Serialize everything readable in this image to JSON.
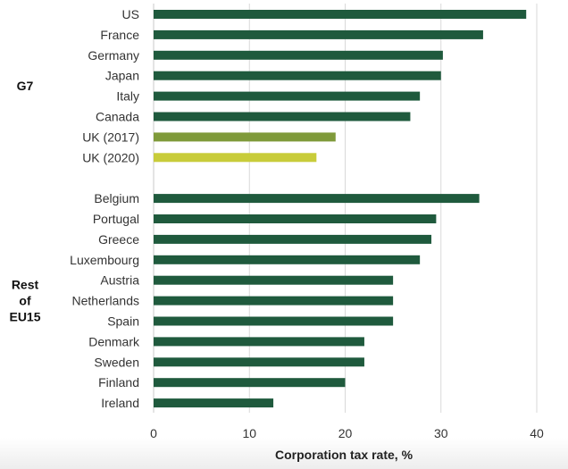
{
  "chart_data": {
    "type": "bar",
    "orientation": "horizontal",
    "xlabel": "Corporation tax rate, %",
    "xlim": [
      0,
      40
    ],
    "xticks": [
      0,
      10,
      20,
      30,
      40
    ],
    "grid": true,
    "groups": [
      {
        "label_lines": [
          "G7"
        ],
        "bars": [
          {
            "category": "US",
            "value": 38.9,
            "color": "#1f5a3d"
          },
          {
            "category": "France",
            "value": 34.4,
            "color": "#1f5a3d"
          },
          {
            "category": "Germany",
            "value": 30.2,
            "color": "#1f5a3d"
          },
          {
            "category": "Japan",
            "value": 30.0,
            "color": "#1f5a3d"
          },
          {
            "category": "Italy",
            "value": 27.8,
            "color": "#1f5a3d"
          },
          {
            "category": "Canada",
            "value": 26.8,
            "color": "#1f5a3d"
          },
          {
            "category": "UK (2017)",
            "value": 19,
            "color": "#7f9a3a"
          },
          {
            "category": "UK (2020)",
            "value": 17,
            "color": "#c8cc3a"
          }
        ]
      },
      {
        "label_lines": [
          "Rest",
          "of",
          "EU15"
        ],
        "bars": [
          {
            "category": "Belgium",
            "value": 34.0,
            "color": "#1f5a3d"
          },
          {
            "category": "Portugal",
            "value": 29.5,
            "color": "#1f5a3d"
          },
          {
            "category": "Greece",
            "value": 29.0,
            "color": "#1f5a3d"
          },
          {
            "category": "Luxembourg",
            "value": 27.8,
            "color": "#1f5a3d"
          },
          {
            "category": "Austria",
            "value": 25.0,
            "color": "#1f5a3d"
          },
          {
            "category": "Netherlands",
            "value": 25.0,
            "color": "#1f5a3d"
          },
          {
            "category": "Spain",
            "value": 25.0,
            "color": "#1f5a3d"
          },
          {
            "category": "Denmark",
            "value": 22.0,
            "color": "#1f5a3d"
          },
          {
            "category": "Sweden",
            "value": 22.0,
            "color": "#1f5a3d"
          },
          {
            "category": "Finland",
            "value": 20.0,
            "color": "#1f5a3d"
          },
          {
            "category": "Ireland",
            "value": 12.5,
            "color": "#1f5a3d"
          }
        ]
      }
    ]
  }
}
